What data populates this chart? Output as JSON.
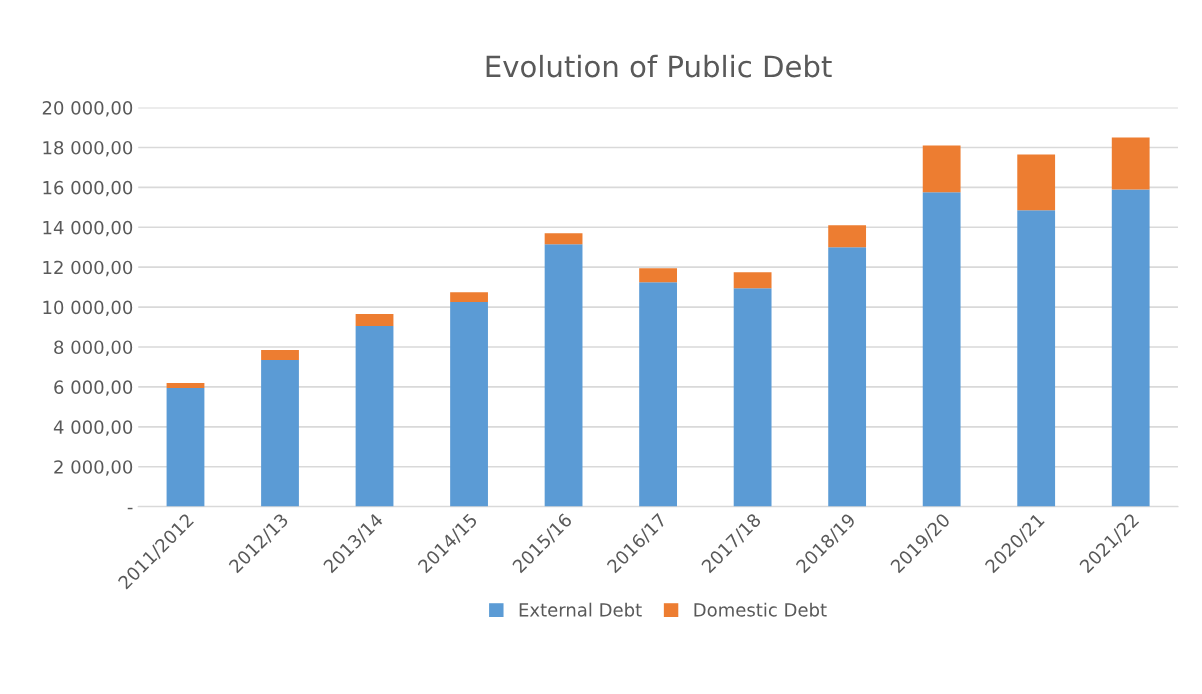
{
  "chart_data": {
    "type": "bar",
    "title": "Evolution of Public Debt",
    "stacked": true,
    "categories": [
      "2011/2012",
      "2012/13",
      "2013/14",
      "2014/15",
      "2015/16",
      "2016/17",
      "2017/18",
      "2018/19",
      "2019/20",
      "2020/21",
      "2021/22"
    ],
    "series": [
      {
        "name": "External Debt",
        "color": "#5b9bd5",
        "values": [
          5950,
          7350,
          9050,
          10250,
          13150,
          11250,
          10950,
          13000,
          15750,
          14850,
          15900
        ]
      },
      {
        "name": "Domestic Debt",
        "color": "#ed7d31",
        "values": [
          250,
          500,
          600,
          500,
          550,
          700,
          800,
          1100,
          2350,
          2800,
          2600
        ]
      }
    ],
    "ylim": [
      0,
      20000
    ],
    "yticks": [
      {
        "value": 0,
        "label": "-"
      },
      {
        "value": 2000,
        "label": "2 000,00"
      },
      {
        "value": 4000,
        "label": "4 000,00"
      },
      {
        "value": 6000,
        "label": "6 000,00"
      },
      {
        "value": 8000,
        "label": "8 000,00"
      },
      {
        "value": 10000,
        "label": "10 000,00"
      },
      {
        "value": 12000,
        "label": "12 000,00"
      },
      {
        "value": 14000,
        "label": "14 000,00"
      },
      {
        "value": 16000,
        "label": "16 000,00"
      },
      {
        "value": 18000,
        "label": "18 000,00"
      },
      {
        "value": 20000,
        "label": "20 000,00"
      }
    ],
    "grid": "y",
    "legend": "bottom"
  }
}
